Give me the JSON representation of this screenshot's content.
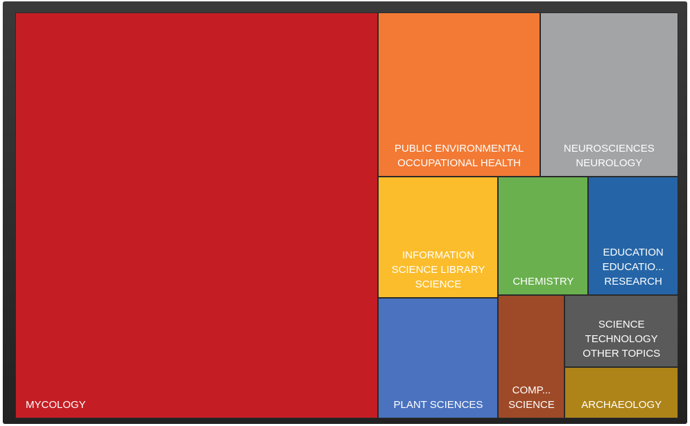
{
  "chart_data": {
    "type": "treemap",
    "categories": [
      "MYCOLOGY",
      "PUBLIC ENVIRONMENTAL OCCUPATIONAL HEALTH",
      "NEUROSCIENCES NEUROLOGY",
      "INFORMATION SCIENCE LIBRARY SCIENCE",
      "PLANT SCIENCES",
      "CHEMISTRY",
      "EDUCATION EDUCATIO... RESEARCH",
      "COMP... SCIENCE",
      "SCIENCE TECHNOLOGY OTHER TOPICS",
      "ARCHAEOLOGY"
    ],
    "values": [
      305,
      55,
      47,
      30,
      30,
      22,
      22,
      17,
      17,
      12
    ],
    "colors": [
      "#c41e24",
      "#f27a34",
      "#a2a4a6",
      "#fbbd2c",
      "#4a72bf",
      "#6ab04f",
      "#2565a7",
      "#9e4a28",
      "#5a5a5a",
      "#ae8419"
    ]
  }
}
